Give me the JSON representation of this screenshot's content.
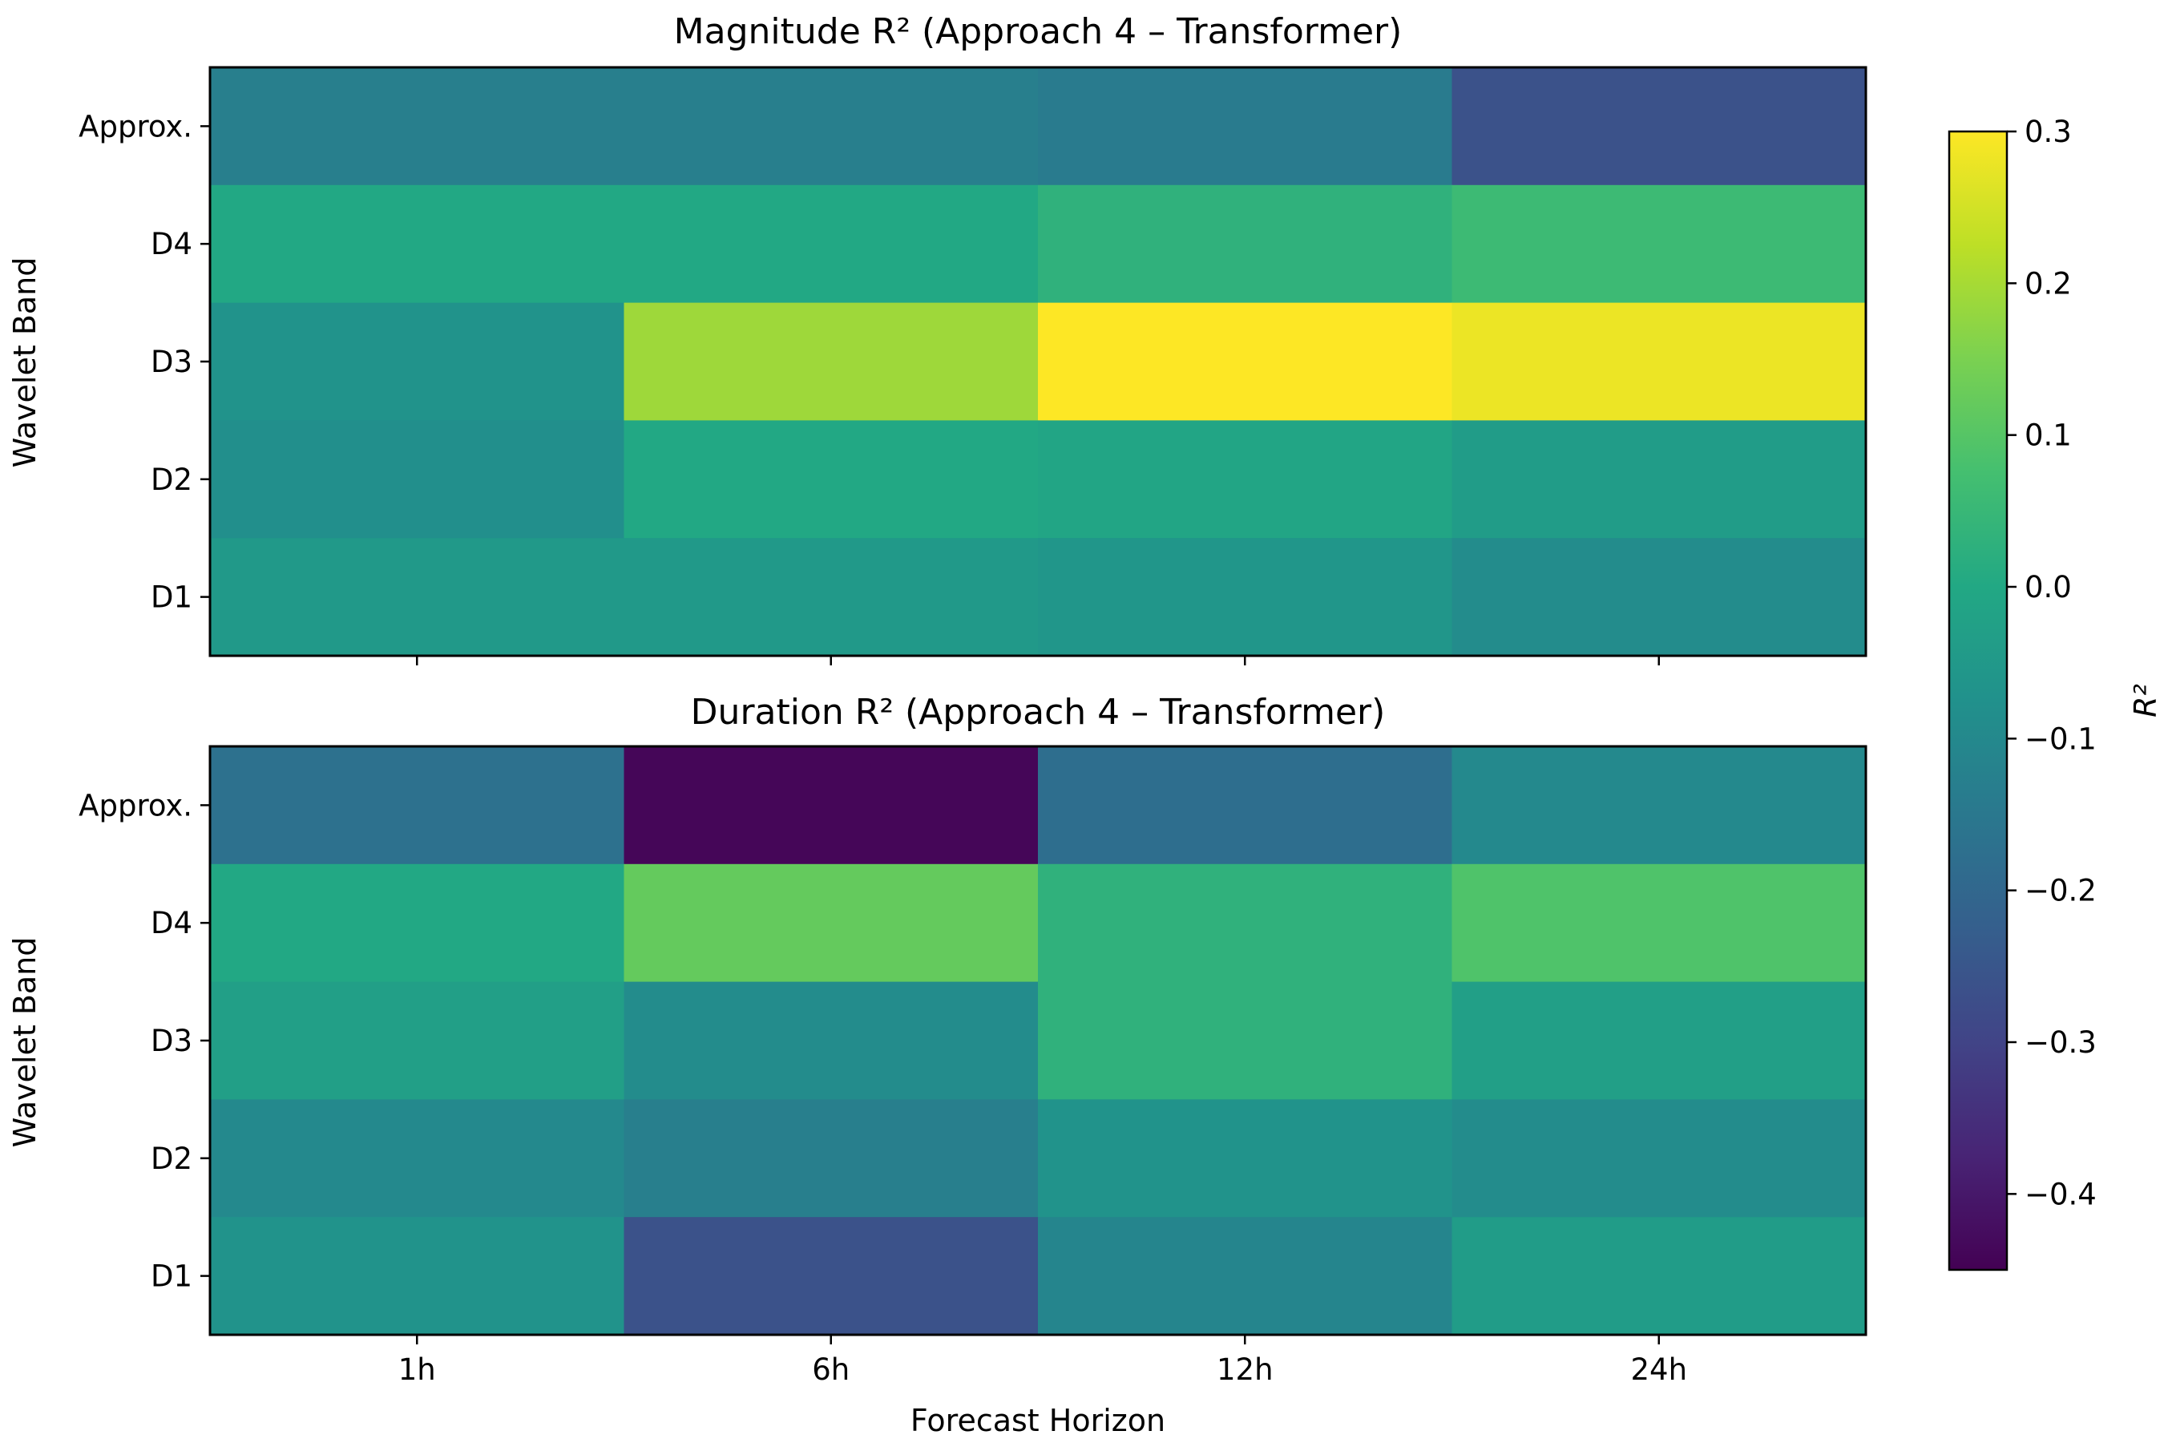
{
  "figure": {
    "xlabel": "Forecast Horizon",
    "colorbar_label": "R²"
  },
  "chart_data": [
    {
      "type": "heatmap",
      "title": "Magnitude R² (Approach 4 – Transformer)",
      "ylabel": "Wavelet Band",
      "xlabel": "",
      "categories_x": [
        "1h",
        "6h",
        "12h",
        "24h"
      ],
      "categories_y": [
        "Approx.",
        "D4",
        "D3",
        "D2",
        "D1"
      ],
      "values": [
        [
          -0.13,
          -0.13,
          -0.14,
          -0.26
        ],
        [
          0.0,
          0.0,
          0.03,
          0.06
        ],
        [
          -0.07,
          0.19,
          0.3,
          0.28
        ],
        [
          -0.08,
          0.0,
          -0.01,
          -0.04
        ],
        [
          -0.05,
          -0.05,
          -0.06,
          -0.09
        ]
      ],
      "colormap": "viridis",
      "vmin": -0.45,
      "vmax": 0.3
    },
    {
      "type": "heatmap",
      "title": "Duration R² (Approach 4 – Transformer)",
      "ylabel": "Wavelet Band",
      "xlabel": "Forecast Horizon",
      "categories_x": [
        "1h",
        "6h",
        "12h",
        "24h"
      ],
      "categories_y": [
        "Approx.",
        "D4",
        "D3",
        "D2",
        "D1"
      ],
      "values": [
        [
          -0.17,
          -0.44,
          -0.18,
          -0.1
        ],
        [
          0.0,
          0.12,
          0.03,
          0.09
        ],
        [
          -0.03,
          -0.09,
          0.03,
          -0.03
        ],
        [
          -0.1,
          -0.13,
          -0.07,
          -0.09
        ],
        [
          -0.07,
          -0.26,
          -0.11,
          -0.04
        ]
      ],
      "colormap": "viridis",
      "vmin": -0.45,
      "vmax": 0.3
    }
  ],
  "colorbar": {
    "ticks": [
      0.3,
      0.2,
      0.1,
      0.0,
      -0.1,
      -0.2,
      -0.3,
      -0.4
    ],
    "tick_labels": [
      "0.3",
      "0.2",
      "0.1",
      "0.0",
      "−0.1",
      "−0.2",
      "−0.3",
      "−0.4"
    ],
    "vmin": -0.45,
    "vmax": 0.3,
    "colormap": "viridis"
  }
}
